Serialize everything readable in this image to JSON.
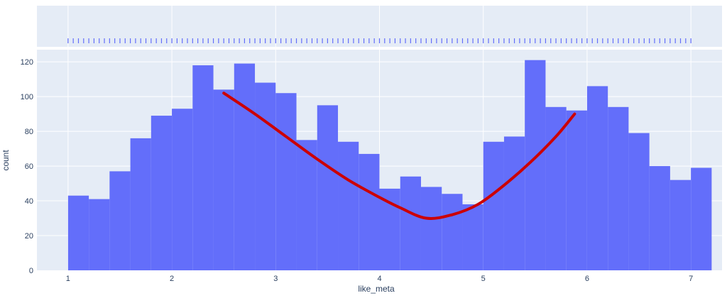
{
  "chart_data": {
    "type": "bar",
    "subtype": "histogram-with-rug",
    "xlabel": "like_meta",
    "ylabel": "count",
    "xlim": [
      0.7,
      7.3
    ],
    "ylim": [
      0,
      127
    ],
    "x_ticks": [
      1,
      2,
      3,
      4,
      5,
      6,
      7
    ],
    "y_ticks": [
      0,
      20,
      40,
      60,
      80,
      100,
      120
    ],
    "grid": true,
    "colors": {
      "bars": "#636efa",
      "plot_background": "#e5ecf6",
      "grid": "#ffffff",
      "overlay_curve": "#cc0000",
      "rug": "#636efa"
    },
    "bins": {
      "start": 1.0,
      "width": 0.2,
      "counts": [
        43,
        41,
        57,
        76,
        89,
        93,
        118,
        104,
        119,
        108,
        102,
        75,
        95,
        74,
        67,
        47,
        54,
        48,
        44,
        38,
        74,
        77,
        121,
        94,
        92,
        106,
        94,
        79,
        60,
        52,
        59
      ]
    },
    "overlay_curve": {
      "points": [
        [
          2.5,
          102
        ],
        [
          2.8,
          90
        ],
        [
          3.1,
          77
        ],
        [
          3.4,
          64
        ],
        [
          3.7,
          52
        ],
        [
          4.0,
          42
        ],
        [
          4.2,
          36
        ],
        [
          4.45,
          30
        ],
        [
          4.7,
          32
        ],
        [
          4.95,
          38
        ],
        [
          5.2,
          49
        ],
        [
          5.45,
          62
        ],
        [
          5.7,
          77
        ],
        [
          5.88,
          90
        ]
      ]
    },
    "rug": {
      "start": 1.0,
      "step": 0.05,
      "count": 121
    }
  }
}
